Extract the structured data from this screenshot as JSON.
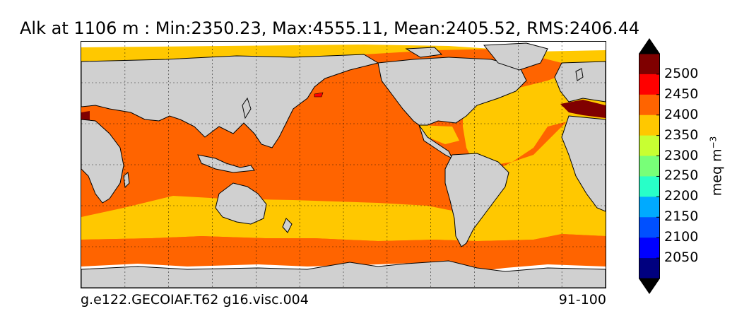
{
  "map": {
    "title": "Alk at 1106 m : Min:2350.23, Max:4555.11, Mean:2405.52, RMS:2406.44",
    "caption_left": "g.e122.GECOIAF.T62 g16.visc.004",
    "caption_right": "91-100",
    "projection": "cylindrical",
    "gridlines": true,
    "colors": {
      "land": "#d0d0d0",
      "no_data": "#ffffff",
      "band_2350_2400": "#ffc800",
      "band_2400_2450": "#ff6400",
      "band_2450_2500": "#ff0000",
      "band_above_2500": "#800000"
    }
  },
  "colorbar": {
    "unit": "meq m",
    "unit_exponent": "−3",
    "extend": "both",
    "ticks": [
      "2500",
      "2450",
      "2400",
      "2350",
      "2300",
      "2250",
      "2200",
      "2150",
      "2100",
      "2050"
    ],
    "bands": [
      {
        "color": "#7f0000"
      },
      {
        "color": "#ff0000"
      },
      {
        "color": "#ff6400"
      },
      {
        "color": "#ffc800"
      },
      {
        "color": "#c8ff32"
      },
      {
        "color": "#78ff78"
      },
      {
        "color": "#28ffc8"
      },
      {
        "color": "#00aaff"
      },
      {
        "color": "#0050ff"
      },
      {
        "color": "#0000ff"
      },
      {
        "color": "#00007f"
      }
    ],
    "extend_low_color": "#000000",
    "extend_high_color": "#000000"
  }
}
